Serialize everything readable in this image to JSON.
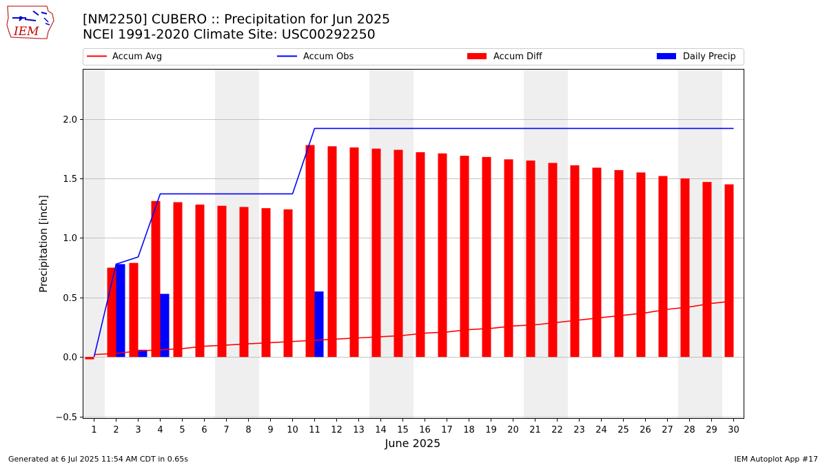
{
  "header": {
    "title": "[NM2250] CUBERO :: Precipitation for Jun 2025",
    "subtitle": "NCEI 1991-2020 Climate Site: USC00292250",
    "logo_text": "IEM"
  },
  "footer": {
    "left": "Generated at 6 Jul 2025 11:54 AM CDT in 0.65s",
    "right": "IEM Autoplot App #17"
  },
  "colors": {
    "avg": "#ff0000",
    "obs": "#0000ff",
    "diff": "#ff0000",
    "daily": "#0000ff",
    "weekend_shade": "#efefef",
    "grid": "#b0b0b0"
  },
  "chart_data": {
    "type": "bar",
    "xlabel": "June 2025",
    "ylabel": "Precipitation [inch]",
    "ylim": [
      -0.52,
      2.42
    ],
    "yticks": [
      -0.5,
      0.0,
      0.5,
      1.0,
      1.5,
      2.0
    ],
    "ytick_labels": [
      "−0.5",
      "0.0",
      "0.5",
      "1.0",
      "1.5",
      "2.0"
    ],
    "x": [
      1,
      2,
      3,
      4,
      5,
      6,
      7,
      8,
      9,
      10,
      11,
      12,
      13,
      14,
      15,
      16,
      17,
      18,
      19,
      20,
      21,
      22,
      23,
      24,
      25,
      26,
      27,
      28,
      29,
      30
    ],
    "x_labels": [
      "1",
      "2",
      "3",
      "4",
      "5",
      "6",
      "7",
      "8",
      "9",
      "10",
      "11",
      "12",
      "13",
      "14",
      "15",
      "16",
      "17",
      "18",
      "19",
      "20",
      "21",
      "22",
      "23",
      "24",
      "25",
      "26",
      "27",
      "28",
      "29",
      "30"
    ],
    "weekend_days": [
      1,
      7,
      8,
      14,
      15,
      21,
      22,
      28,
      29
    ],
    "grid": "horizontal",
    "legend_placement": "top",
    "legend": [
      "Accum Avg",
      "Accum Obs",
      "Accum Diff",
      "Daily Precip"
    ],
    "series": [
      {
        "name": "Accum Avg",
        "kind": "line",
        "values": [
          0.02,
          0.03,
          0.05,
          0.06,
          0.07,
          0.09,
          0.1,
          0.11,
          0.12,
          0.13,
          0.14,
          0.15,
          0.16,
          0.17,
          0.18,
          0.2,
          0.21,
          0.23,
          0.24,
          0.26,
          0.27,
          0.29,
          0.31,
          0.33,
          0.35,
          0.37,
          0.4,
          0.42,
          0.45,
          0.47
        ]
      },
      {
        "name": "Accum Obs",
        "kind": "line",
        "values": [
          0.0,
          0.78,
          0.84,
          1.37,
          1.37,
          1.37,
          1.37,
          1.37,
          1.37,
          1.37,
          1.92,
          1.92,
          1.92,
          1.92,
          1.92,
          1.92,
          1.92,
          1.92,
          1.92,
          1.92,
          1.92,
          1.92,
          1.92,
          1.92,
          1.92,
          1.92,
          1.92,
          1.92,
          1.92,
          1.92
        ]
      },
      {
        "name": "Accum Diff",
        "kind": "bar",
        "values": [
          -0.02,
          0.75,
          0.79,
          1.31,
          1.3,
          1.28,
          1.27,
          1.26,
          1.25,
          1.24,
          1.78,
          1.77,
          1.76,
          1.75,
          1.74,
          1.72,
          1.71,
          1.69,
          1.68,
          1.66,
          1.65,
          1.63,
          1.61,
          1.59,
          1.57,
          1.55,
          1.52,
          1.5,
          1.47,
          1.45
        ]
      },
      {
        "name": "Daily Precip",
        "kind": "bar",
        "values": [
          0.0,
          0.78,
          0.06,
          0.53,
          0.0,
          0.0,
          0.0,
          0.0,
          0.0,
          0.0,
          0.55,
          0.0,
          0.0,
          0.0,
          0.0,
          0.0,
          0.0,
          0.0,
          0.0,
          0.0,
          0.0,
          0.0,
          0.0,
          0.0,
          0.0,
          0.0,
          0.0,
          0.0,
          0.0,
          0.0
        ]
      }
    ]
  }
}
